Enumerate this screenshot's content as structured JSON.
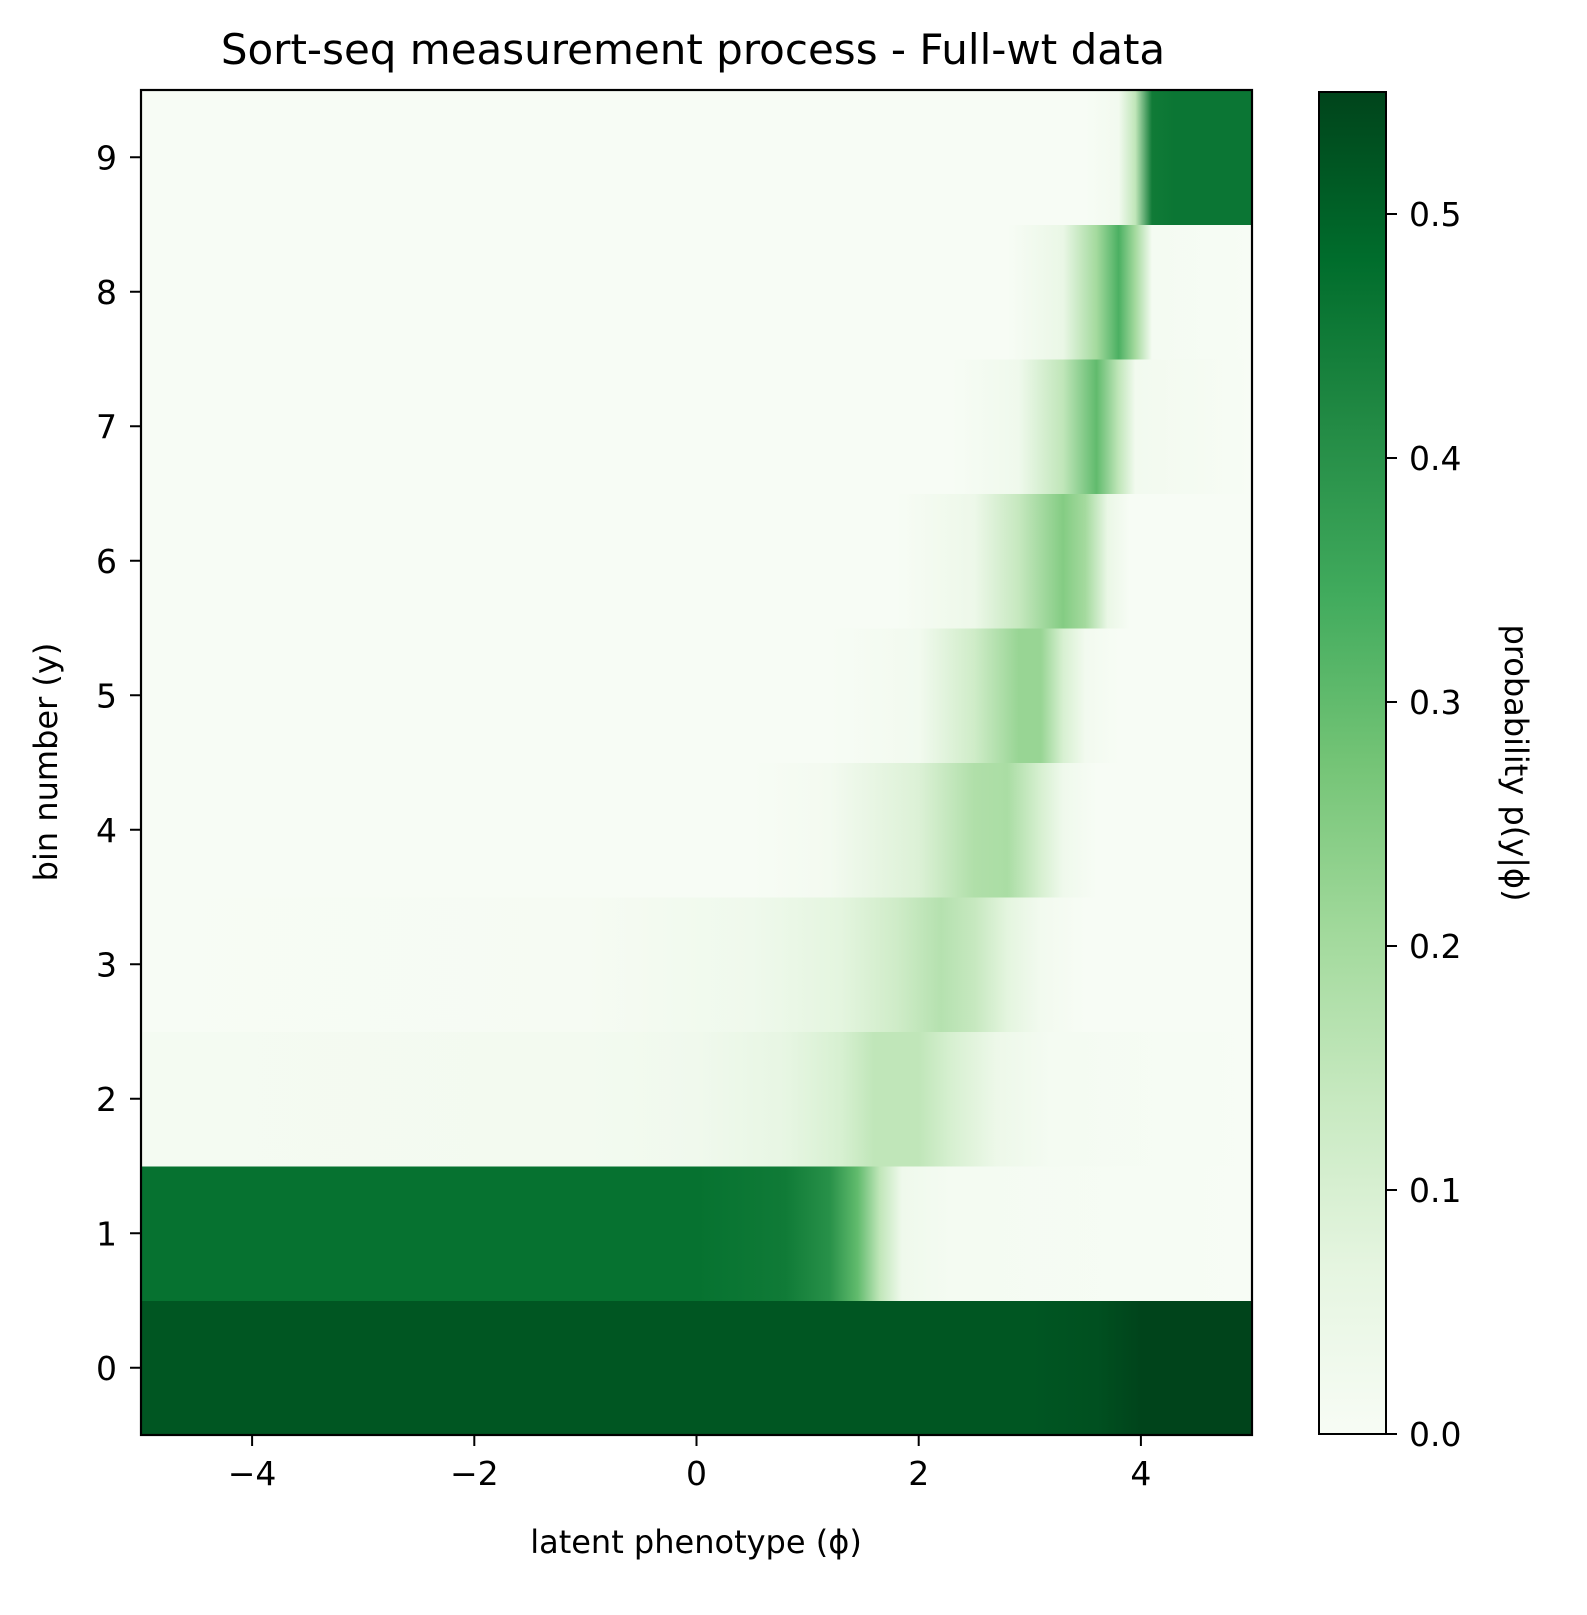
{
  "chart_data": {
    "type": "heatmap",
    "title": "Sort-seq measurement process - Full-wt data",
    "xlabel": "latent phenotype (ϕ)",
    "ylabel": "bin number (y)",
    "colorbar_label": "probability  p(y|ϕ)",
    "xlim": [
      -5,
      5
    ],
    "ylim": [
      -0.5,
      9.5
    ],
    "x_ticks": [
      -4,
      -2,
      0,
      2,
      4
    ],
    "x_tick_labels": [
      "−4",
      "−2",
      "0",
      "2",
      "4"
    ],
    "y_ticks": [
      0,
      1,
      2,
      3,
      4,
      5,
      6,
      7,
      8,
      9
    ],
    "y_tick_labels": [
      "0",
      "1",
      "2",
      "3",
      "4",
      "5",
      "6",
      "7",
      "8",
      "9"
    ],
    "colorbar_range": [
      0.0,
      0.55
    ],
    "colorbar_ticks": [
      0.0,
      0.1,
      0.2,
      0.3,
      0.4,
      0.5
    ],
    "colorbar_tick_labels": [
      "0.0",
      "0.1",
      "0.2",
      "0.3",
      "0.4",
      "0.5"
    ],
    "colormap": "Greens",
    "colormap_stops": [
      "#f7fcf5",
      "#e5f5e0",
      "#c7e9c0",
      "#a1d99b",
      "#74c476",
      "#41ab5d",
      "#238b45",
      "#006d2c",
      "#00441b"
    ],
    "bins": [
      {
        "y": 0,
        "profile": [
          [
            -5,
            0.52
          ],
          [
            3.0,
            0.52
          ],
          [
            3.6,
            0.53
          ],
          [
            4.0,
            0.55
          ],
          [
            5,
            0.55
          ]
        ]
      },
      {
        "y": 1,
        "profile": [
          [
            -5,
            0.47
          ],
          [
            0.0,
            0.47
          ],
          [
            0.8,
            0.45
          ],
          [
            1.2,
            0.4
          ],
          [
            1.45,
            0.3
          ],
          [
            1.65,
            0.15
          ],
          [
            1.85,
            0.03
          ],
          [
            2.3,
            0.01
          ],
          [
            5,
            0.0
          ]
        ]
      },
      {
        "y": 2,
        "profile": [
          [
            -5,
            0.01
          ],
          [
            -1.0,
            0.015
          ],
          [
            0.0,
            0.025
          ],
          [
            0.8,
            0.06
          ],
          [
            1.3,
            0.1
          ],
          [
            1.6,
            0.15
          ],
          [
            2.0,
            0.15
          ],
          [
            2.3,
            0.1
          ],
          [
            2.7,
            0.04
          ],
          [
            3.2,
            0.01
          ],
          [
            5,
            0.0
          ]
        ]
      },
      {
        "y": 3,
        "profile": [
          [
            -5,
            0.0
          ],
          [
            -1.0,
            0.005
          ],
          [
            0.5,
            0.03
          ],
          [
            1.3,
            0.07
          ],
          [
            1.8,
            0.12
          ],
          [
            2.2,
            0.17
          ],
          [
            2.5,
            0.14
          ],
          [
            2.8,
            0.07
          ],
          [
            3.1,
            0.02
          ],
          [
            3.5,
            0.0
          ],
          [
            5,
            0.0
          ]
        ]
      },
      {
        "y": 4,
        "profile": [
          [
            -5,
            0.0
          ],
          [
            0.5,
            0.0
          ],
          [
            1.2,
            0.015
          ],
          [
            2.0,
            0.09
          ],
          [
            2.5,
            0.18
          ],
          [
            2.8,
            0.19
          ],
          [
            3.1,
            0.1
          ],
          [
            3.3,
            0.03
          ],
          [
            3.6,
            0.0
          ],
          [
            5,
            0.0
          ]
        ]
      },
      {
        "y": 5,
        "profile": [
          [
            -5,
            0.0
          ],
          [
            1.2,
            0.0
          ],
          [
            2.0,
            0.02
          ],
          [
            2.5,
            0.12
          ],
          [
            2.9,
            0.22
          ],
          [
            3.1,
            0.22
          ],
          [
            3.3,
            0.1
          ],
          [
            3.5,
            0.02
          ],
          [
            3.8,
            0.0
          ],
          [
            5,
            0.0
          ]
        ]
      },
      {
        "y": 6,
        "profile": [
          [
            -5,
            0.0
          ],
          [
            1.8,
            0.0
          ],
          [
            2.5,
            0.04
          ],
          [
            2.9,
            0.14
          ],
          [
            3.3,
            0.25
          ],
          [
            3.5,
            0.2
          ],
          [
            3.7,
            0.05
          ],
          [
            3.9,
            0.0
          ],
          [
            5,
            0.0
          ]
        ]
      },
      {
        "y": 7,
        "profile": [
          [
            -5,
            0.0
          ],
          [
            2.3,
            0.0
          ],
          [
            2.9,
            0.03
          ],
          [
            3.3,
            0.15
          ],
          [
            3.6,
            0.3
          ],
          [
            3.8,
            0.15
          ],
          [
            3.95,
            0.02
          ],
          [
            5,
            0.0
          ]
        ]
      },
      {
        "y": 8,
        "profile": [
          [
            -5,
            0.0
          ],
          [
            2.8,
            0.0
          ],
          [
            3.3,
            0.05
          ],
          [
            3.6,
            0.2
          ],
          [
            3.8,
            0.33
          ],
          [
            3.95,
            0.2
          ],
          [
            4.1,
            0.01
          ],
          [
            5,
            0.0
          ]
        ]
      },
      {
        "y": 9,
        "profile": [
          [
            -5,
            0.0
          ],
          [
            3.5,
            0.0
          ],
          [
            3.8,
            0.02
          ],
          [
            3.95,
            0.15
          ],
          [
            4.1,
            0.45
          ],
          [
            4.3,
            0.46
          ],
          [
            5,
            0.46
          ]
        ]
      }
    ]
  }
}
